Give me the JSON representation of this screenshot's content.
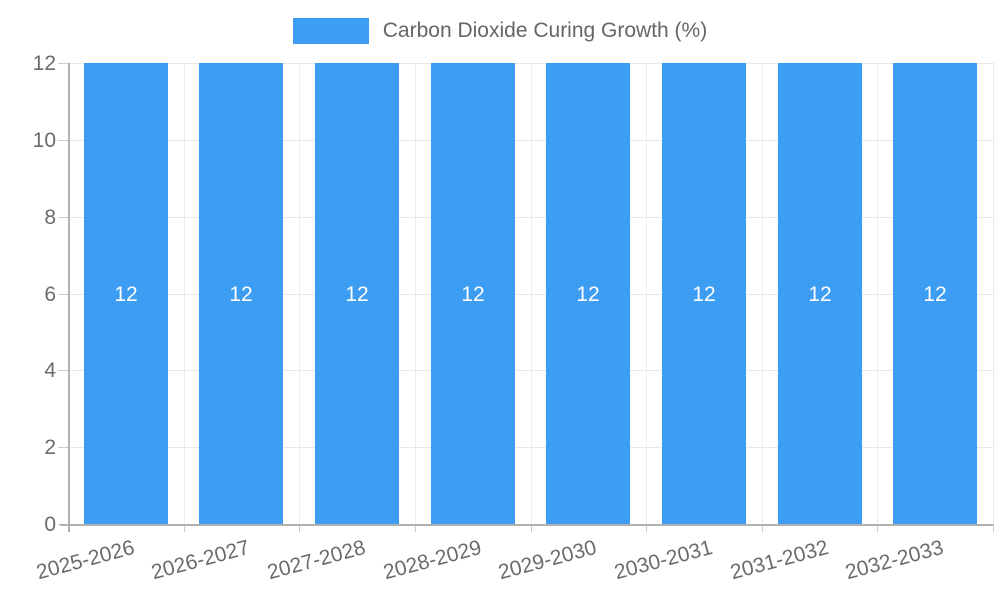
{
  "chart_data": {
    "type": "bar",
    "title": "Carbon Dioxide Curing Growth (%)",
    "categories": [
      "2025-2026",
      "2026-2027",
      "2027-2028",
      "2028-2029",
      "2029-2030",
      "2030-2031",
      "2031-2032",
      "2032-2033"
    ],
    "series": [
      {
        "name": "Carbon Dioxide Curing Growth (%)",
        "values": [
          12,
          12,
          12,
          12,
          12,
          12,
          12,
          12
        ]
      }
    ],
    "bar_value_labels": [
      "12",
      "12",
      "12",
      "12",
      "12",
      "12",
      "12",
      "12"
    ],
    "xlabel": "",
    "ylabel": "",
    "ylim": [
      0,
      12
    ],
    "yticks": [
      0,
      2,
      4,
      6,
      8,
      10,
      12
    ],
    "grid": true,
    "legend_position": "top-center",
    "value_label_position": "center-of-bar",
    "colors": {
      "bar": "#3d9df3",
      "bar_label_text": "#ffffff",
      "axis": "#b0b0b0",
      "gridline": "#e8e8e8",
      "tick_text": "#6b6b6b",
      "legend_text": "#666666",
      "background": "#ffffff"
    }
  }
}
